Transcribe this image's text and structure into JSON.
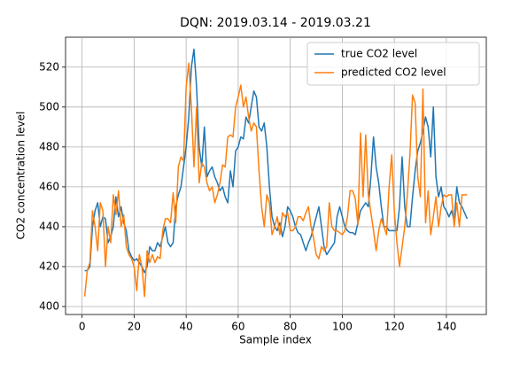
{
  "chart_data": {
    "type": "line",
    "title": "DQN: 2019.03.14 - 2019.03.21",
    "x_label": "Sample index",
    "y_label": "CO2 concentration level",
    "x": [
      1,
      2,
      3,
      4,
      5,
      6,
      7,
      8,
      9,
      10,
      11,
      12,
      13,
      14,
      15,
      16,
      17,
      18,
      19,
      20,
      21,
      22,
      23,
      24,
      25,
      26,
      27,
      28,
      29,
      30,
      31,
      32,
      33,
      34,
      35,
      36,
      37,
      38,
      39,
      40,
      41,
      42,
      43,
      44,
      45,
      46,
      47,
      48,
      49,
      50,
      51,
      52,
      53,
      54,
      55,
      56,
      57,
      58,
      59,
      60,
      61,
      62,
      63,
      64,
      65,
      66,
      67,
      68,
      69,
      70,
      71,
      72,
      73,
      74,
      75,
      76,
      77,
      78,
      79,
      80,
      81,
      82,
      83,
      84,
      85,
      86,
      87,
      88,
      89,
      90,
      91,
      92,
      93,
      94,
      95,
      96,
      97,
      98,
      99,
      100,
      101,
      102,
      103,
      104,
      105,
      106,
      107,
      108,
      109,
      110,
      111,
      112,
      113,
      114,
      115,
      116,
      117,
      118,
      119,
      120,
      121,
      122,
      123,
      124,
      125,
      126,
      127,
      128,
      129,
      130,
      131,
      132,
      133,
      134,
      135,
      136,
      137,
      138,
      139,
      140,
      141,
      142,
      143,
      144,
      145,
      146,
      147,
      148
    ],
    "series": [
      {
        "name": "true CO2 level",
        "color": "#1f77b4",
        "values": [
          418,
          418,
          420,
          440,
          448,
          452,
          440,
          445,
          444,
          432,
          435,
          440,
          455,
          445,
          450,
          442,
          438,
          428,
          425,
          423,
          424,
          422,
          420,
          417,
          420,
          430,
          428,
          428,
          432,
          430,
          435,
          440,
          432,
          430,
          432,
          450,
          456,
          460,
          470,
          480,
          495,
          520,
          529,
          510,
          480,
          470,
          490,
          465,
          468,
          470,
          465,
          462,
          458,
          460,
          455,
          452,
          468,
          460,
          478,
          480,
          485,
          484,
          495,
          492,
          500,
          508,
          505,
          490,
          488,
          492,
          480,
          460,
          445,
          440,
          438,
          442,
          435,
          440,
          450,
          448,
          445,
          440,
          437,
          436,
          432,
          428,
          432,
          435,
          440,
          445,
          450,
          440,
          430,
          426,
          428,
          430,
          432,
          445,
          450,
          445,
          440,
          438,
          437,
          437,
          436,
          442,
          448,
          450,
          452,
          450,
          465,
          485,
          470,
          462,
          450,
          440,
          440,
          438,
          438,
          438,
          438,
          450,
          475,
          450,
          440,
          440,
          455,
          468,
          478,
          482,
          488,
          495,
          490,
          475,
          500,
          465,
          455,
          460,
          450,
          448,
          445,
          448,
          443,
          460,
          452,
          450,
          447,
          444
        ]
      },
      {
        "name": "predicted CO2 level",
        "color": "#ff7f0e",
        "values": [
          405,
          418,
          422,
          448,
          440,
          428,
          452,
          448,
          420,
          440,
          432,
          456,
          446,
          458,
          440,
          446,
          430,
          426,
          424,
          420,
          408,
          426,
          420,
          405,
          428,
          422,
          426,
          422,
          425,
          424,
          438,
          444,
          444,
          442,
          457,
          442,
          470,
          475,
          473,
          510,
          522,
          500,
          470,
          500,
          462,
          472,
          470,
          462,
          458,
          460,
          452,
          456,
          462,
          471,
          470,
          485,
          486,
          485,
          500,
          505,
          511,
          500,
          505,
          495,
          488,
          492,
          490,
          468,
          450,
          440,
          456,
          452,
          436,
          440,
          445,
          436,
          447,
          445,
          447,
          438,
          438,
          440,
          445,
          445,
          443,
          447,
          450,
          440,
          434,
          426,
          424,
          430,
          428,
          430,
          452,
          440,
          438,
          438,
          437,
          436,
          438,
          445,
          458,
          458,
          454,
          441,
          487,
          455,
          486,
          456,
          447,
          438,
          428,
          438,
          444,
          440,
          436,
          460,
          476,
          448,
          432,
          420,
          430,
          440,
          456,
          476,
          506,
          502,
          465,
          455,
          509,
          442,
          458,
          436,
          445,
          455,
          440,
          450,
          456,
          455,
          456,
          456,
          440,
          452,
          440,
          456,
          456,
          456
        ]
      }
    ],
    "xlim": [
      -6.35,
      155.35
    ],
    "ylim": [
      396,
      535
    ],
    "xticks": [
      0,
      20,
      40,
      60,
      80,
      100,
      120,
      140
    ],
    "yticks": [
      400,
      420,
      440,
      460,
      480,
      500,
      520
    ],
    "grid": true,
    "legend": "upper right"
  }
}
